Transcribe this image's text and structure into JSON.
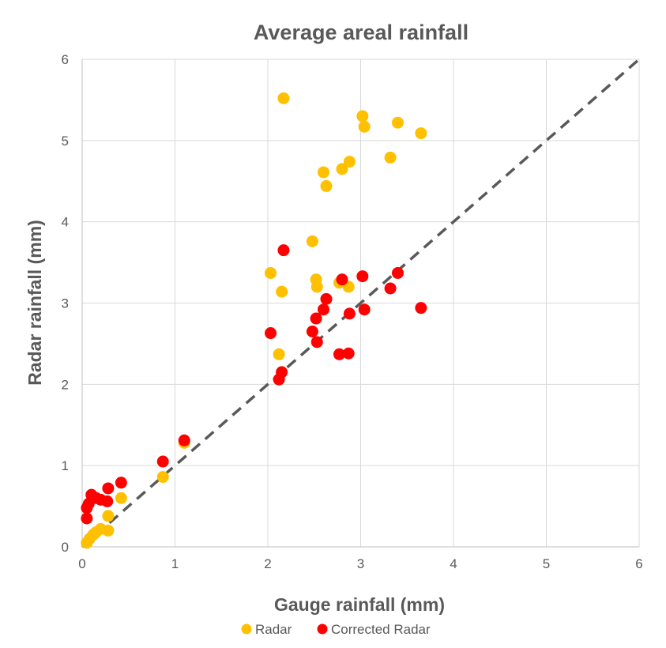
{
  "chart_data": {
    "type": "scatter",
    "title": "Average areal rainfall",
    "xlabel": "Gauge rainfall (mm)",
    "ylabel": "Radar rainfall (mm)",
    "xlim": [
      0,
      6
    ],
    "ylim": [
      0,
      6
    ],
    "xticks": [
      0,
      1,
      2,
      3,
      4,
      5,
      6
    ],
    "yticks": [
      0,
      1,
      2,
      3,
      4,
      5,
      6
    ],
    "grid": true,
    "legend_position": "bottom",
    "reference_line": {
      "name": "1:1 line",
      "x": [
        0,
        6
      ],
      "y": [
        0,
        6
      ],
      "style": "dashed",
      "color": "#595959"
    },
    "series": [
      {
        "name": "Radar",
        "color": "#FFC000",
        "points": [
          [
            0.05,
            0.05
          ],
          [
            0.08,
            0.1
          ],
          [
            0.12,
            0.15
          ],
          [
            0.15,
            0.18
          ],
          [
            0.2,
            0.22
          ],
          [
            0.28,
            0.2
          ],
          [
            0.28,
            0.38
          ],
          [
            0.42,
            0.6
          ],
          [
            0.87,
            0.86
          ],
          [
            1.1,
            1.28
          ],
          [
            2.03,
            3.37
          ],
          [
            2.12,
            2.37
          ],
          [
            2.15,
            3.14
          ],
          [
            2.17,
            5.52
          ],
          [
            2.48,
            3.76
          ],
          [
            2.52,
            3.29
          ],
          [
            2.53,
            3.2
          ],
          [
            2.6,
            4.61
          ],
          [
            2.63,
            4.44
          ],
          [
            2.77,
            3.25
          ],
          [
            2.8,
            4.65
          ],
          [
            2.87,
            3.2
          ],
          [
            2.88,
            4.74
          ],
          [
            3.02,
            5.3
          ],
          [
            3.04,
            5.17
          ],
          [
            3.32,
            4.79
          ],
          [
            3.4,
            5.22
          ],
          [
            3.65,
            5.09
          ]
        ]
      },
      {
        "name": "Corrected Radar",
        "color": "#FF0000",
        "points": [
          [
            0.05,
            0.35
          ],
          [
            0.05,
            0.48
          ],
          [
            0.07,
            0.53
          ],
          [
            0.1,
            0.64
          ],
          [
            0.15,
            0.6
          ],
          [
            0.2,
            0.58
          ],
          [
            0.27,
            0.56
          ],
          [
            0.28,
            0.72
          ],
          [
            0.42,
            0.79
          ],
          [
            0.87,
            1.05
          ],
          [
            1.1,
            1.31
          ],
          [
            2.03,
            2.63
          ],
          [
            2.12,
            2.06
          ],
          [
            2.15,
            2.15
          ],
          [
            2.17,
            3.65
          ],
          [
            2.48,
            2.65
          ],
          [
            2.52,
            2.81
          ],
          [
            2.53,
            2.52
          ],
          [
            2.6,
            2.92
          ],
          [
            2.63,
            3.05
          ],
          [
            2.77,
            2.37
          ],
          [
            2.8,
            3.29
          ],
          [
            2.87,
            2.38
          ],
          [
            2.88,
            2.87
          ],
          [
            3.02,
            3.33
          ],
          [
            3.04,
            2.92
          ],
          [
            3.32,
            3.18
          ],
          [
            3.4,
            3.37
          ],
          [
            3.65,
            2.94
          ]
        ]
      }
    ]
  }
}
